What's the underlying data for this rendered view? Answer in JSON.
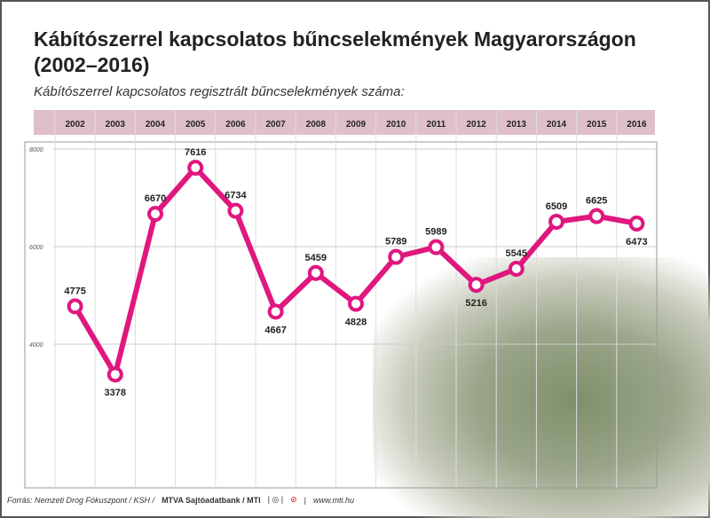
{
  "title": "Kábítószerrel kapcsolatos bűncselekmények Magyarországon (2002–2016)",
  "footer": {
    "source": "Forrás: Nemzeti Drog Fókuszpont / KSH /",
    "credit": "MTVA Sajtóadatbank / MTI",
    "url": "www.mti.hu"
  },
  "chart_data": {
    "type": "line",
    "title": "Kábítószerrel kapcsolatos bűncselekmények Magyarországon (2002–2016)",
    "subtitle": "Kábítószerrel kapcsolatos regisztrált bűncselekmények száma:",
    "categories": [
      "2002",
      "2003",
      "2004",
      "2005",
      "2006",
      "2007",
      "2008",
      "2009",
      "2010",
      "2011",
      "2012",
      "2013",
      "2014",
      "2015",
      "2016"
    ],
    "values": [
      4775,
      3378,
      6670,
      7616,
      6734,
      4667,
      5459,
      4828,
      5789,
      5989,
      5216,
      5545,
      6509,
      6625,
      6473
    ],
    "yticks": [
      4000,
      6000,
      8000
    ],
    "ylim": [
      4000,
      8000
    ],
    "color": "#e0177f",
    "grid": true
  }
}
